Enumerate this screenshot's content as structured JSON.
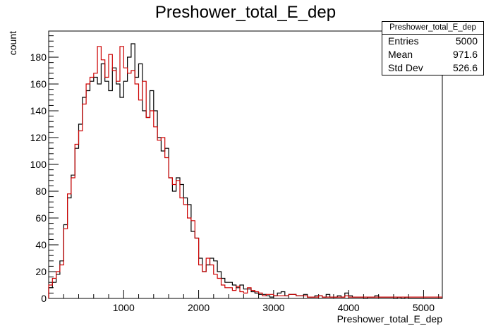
{
  "chart_data": {
    "type": "histogram",
    "title": "Preshower_total_E_dep",
    "xlabel": "Preshower_total_E_dep",
    "ylabel": "count",
    "xlim": [
      0,
      5250
    ],
    "ylim": [
      0,
      199.5
    ],
    "x_ticks": [
      1000,
      2000,
      3000,
      4000,
      5000
    ],
    "y_ticks": [
      0,
      20,
      40,
      60,
      80,
      100,
      120,
      140,
      160,
      180
    ],
    "bin_width": 50,
    "grid": false,
    "series": [
      {
        "color": "#000000",
        "values": [
          8,
          12,
          18,
          28,
          55,
          75,
          92,
          112,
          130,
          150,
          155,
          162,
          165,
          160,
          175,
          162,
          155,
          172,
          160,
          150,
          162,
          180,
          190,
          165,
          175,
          140,
          135,
          155,
          140,
          120,
          110,
          112,
          90,
          80,
          90,
          85,
          75,
          70,
          50,
          45,
          30,
          20,
          25,
          30,
          28,
          20,
          15,
          12,
          12,
          10,
          8,
          10,
          7,
          7,
          5,
          4,
          3,
          3,
          2,
          1,
          2,
          4,
          5,
          2,
          3,
          3,
          2,
          2,
          3,
          1,
          1,
          2,
          2,
          1,
          3,
          1,
          1,
          2,
          1,
          4,
          2,
          1,
          1,
          1,
          0,
          1,
          1,
          2,
          1,
          1,
          1,
          1,
          0,
          1,
          0,
          1,
          0,
          0,
          0,
          0,
          0,
          0,
          0,
          0,
          0
        ]
      },
      {
        "color": "#cc0000",
        "values": [
          10,
          15,
          20,
          25,
          52,
          78,
          90,
          115,
          125,
          145,
          160,
          165,
          168,
          188,
          178,
          165,
          182,
          170,
          162,
          188,
          172,
          168,
          170,
          160,
          148,
          162,
          135,
          140,
          128,
          118,
          120,
          105,
          90,
          85,
          88,
          75,
          70,
          60,
          58,
          45,
          25,
          20,
          30,
          25,
          18,
          15,
          10,
          8,
          8,
          6,
          9,
          5,
          4,
          8,
          6,
          5,
          4,
          2,
          3,
          3,
          2,
          2,
          2,
          2,
          3,
          3,
          2,
          2,
          2,
          1,
          1,
          1,
          2,
          1,
          1,
          1,
          1,
          1,
          1,
          2,
          1,
          1,
          1,
          1,
          1,
          1,
          1,
          1,
          1,
          1,
          1,
          1,
          1,
          1,
          1,
          1,
          1,
          1,
          1,
          1,
          1,
          1,
          1,
          1,
          1
        ]
      }
    ]
  },
  "stats_box": {
    "title": "Preshower_total_E_dep",
    "rows": [
      {
        "label": "Entries",
        "value": "5000"
      },
      {
        "label": "Mean",
        "value": "971.6"
      },
      {
        "label": "Std Dev",
        "value": "526.6"
      }
    ]
  }
}
